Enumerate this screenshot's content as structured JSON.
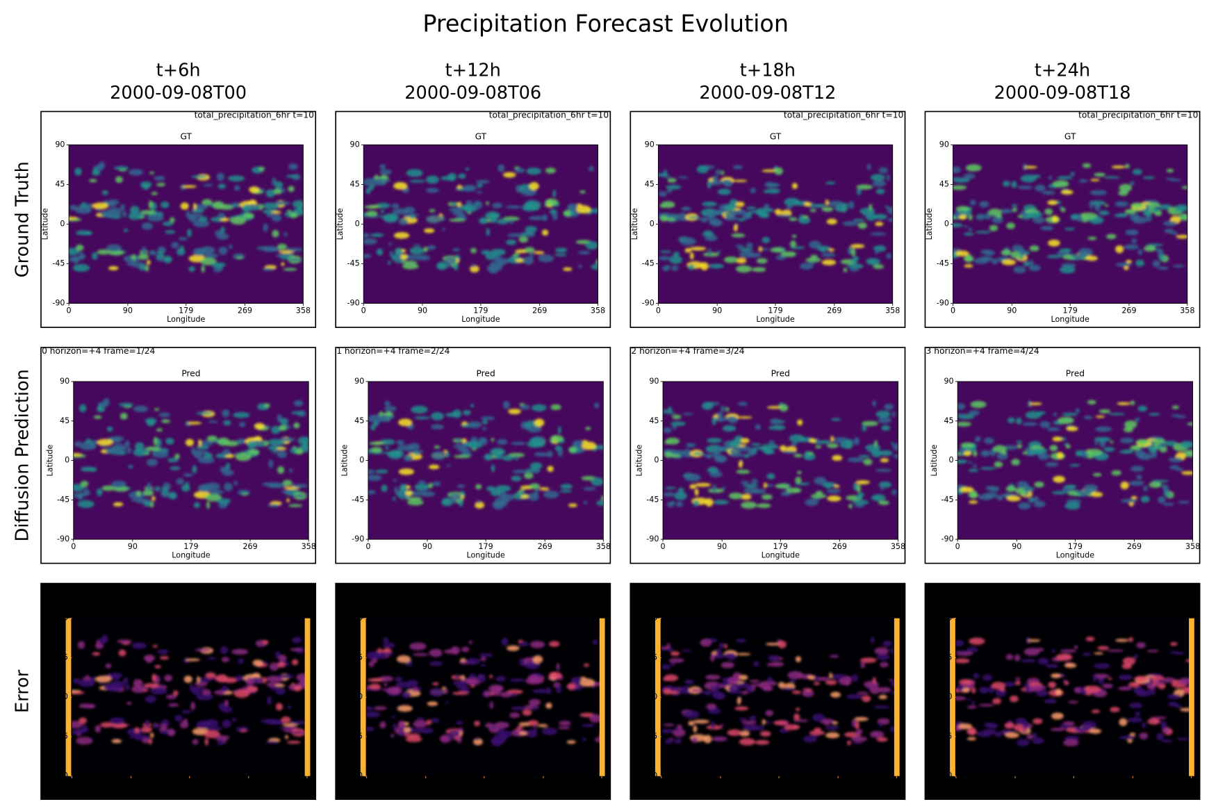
{
  "title": "Precipitation Forecast Evolution",
  "columns": [
    {
      "lead": "t+6h",
      "time": "2000-09-08T00",
      "pred_header": "00  horizon=+4  frame=1/24"
    },
    {
      "lead": "t+12h",
      "time": "2000-09-08T06",
      "pred_header": "01  horizon=+4  frame=2/24"
    },
    {
      "lead": "t+18h",
      "time": "2000-09-08T12",
      "pred_header": "02  horizon=+4  frame=3/24"
    },
    {
      "lead": "t+24h",
      "time": "2000-09-08T18",
      "pred_header": "03  horizon=+4  frame=4/24"
    }
  ],
  "rows": [
    {
      "label": "Ground Truth",
      "panel_title": "GT"
    },
    {
      "label": "Diffusion Prediction",
      "panel_title": "Pred"
    },
    {
      "label": "Error"
    }
  ],
  "gt_header": "total_precipitation_6hr  t=10",
  "axes": {
    "xlabel": "Longitude",
    "ylabel": "Latitude",
    "xlim": [
      0,
      358
    ],
    "ylim": [
      -90,
      90
    ],
    "xticks": [
      0,
      90,
      179,
      269,
      358
    ],
    "yticks": [
      90,
      45,
      0,
      -45,
      -90
    ]
  }
}
